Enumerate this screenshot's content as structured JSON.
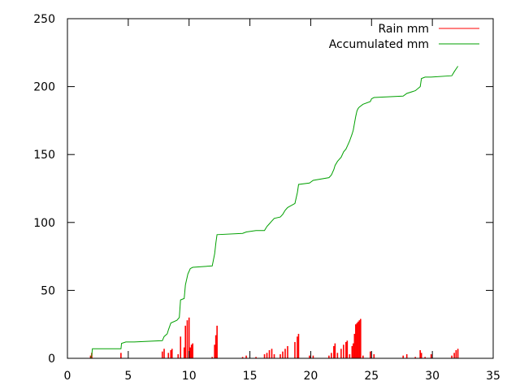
{
  "chart_data": {
    "type": "line",
    "title": "",
    "xlabel": "",
    "ylabel": "",
    "xlim": [
      0,
      35
    ],
    "ylim": [
      0,
      250
    ],
    "xticks": [
      0,
      5,
      10,
      15,
      20,
      25,
      30,
      35
    ],
    "yticks": [
      0,
      50,
      100,
      150,
      200,
      250
    ],
    "grid": false,
    "legend_position": "top-right",
    "series": [
      {
        "name": "Rain mm",
        "color": "#ff0000",
        "style": "impulses",
        "points": [
          [
            1.9,
            2
          ],
          [
            2.0,
            4
          ],
          [
            4.4,
            4
          ],
          [
            7.8,
            5
          ],
          [
            7.95,
            7
          ],
          [
            8.3,
            4
          ],
          [
            8.5,
            6
          ],
          [
            8.6,
            7
          ],
          [
            9.1,
            3
          ],
          [
            9.3,
            16
          ],
          [
            9.6,
            8
          ],
          [
            9.7,
            24
          ],
          [
            9.85,
            28
          ],
          [
            10.0,
            30
          ],
          [
            10.1,
            8
          ],
          [
            10.2,
            10
          ],
          [
            10.3,
            11
          ],
          [
            11.9,
            1
          ],
          [
            12.1,
            10
          ],
          [
            12.2,
            17
          ],
          [
            12.3,
            24
          ],
          [
            14.4,
            1
          ],
          [
            14.7,
            2
          ],
          [
            15.5,
            1
          ],
          [
            16.2,
            3
          ],
          [
            16.4,
            4
          ],
          [
            16.6,
            6
          ],
          [
            16.8,
            7
          ],
          [
            17.0,
            3
          ],
          [
            17.5,
            3
          ],
          [
            17.7,
            5
          ],
          [
            17.9,
            7
          ],
          [
            18.1,
            9
          ],
          [
            18.7,
            12
          ],
          [
            18.9,
            16
          ],
          [
            19.0,
            18
          ],
          [
            19.9,
            2
          ],
          [
            20.2,
            2
          ],
          [
            21.5,
            2
          ],
          [
            21.7,
            4
          ],
          [
            21.9,
            9
          ],
          [
            22.0,
            11
          ],
          [
            22.2,
            4
          ],
          [
            22.5,
            7
          ],
          [
            22.7,
            10
          ],
          [
            22.9,
            12
          ],
          [
            23.0,
            13
          ],
          [
            23.2,
            3
          ],
          [
            23.4,
            9
          ],
          [
            23.5,
            11
          ],
          [
            23.6,
            18
          ],
          [
            23.7,
            25
          ],
          [
            23.8,
            26
          ],
          [
            23.9,
            27
          ],
          [
            24.0,
            28
          ],
          [
            24.1,
            29
          ],
          [
            24.3,
            2
          ],
          [
            24.9,
            5
          ],
          [
            25.2,
            3
          ],
          [
            27.6,
            2
          ],
          [
            27.9,
            3
          ],
          [
            28.6,
            1
          ],
          [
            29.0,
            6
          ],
          [
            29.1,
            4
          ],
          [
            29.4,
            1
          ],
          [
            29.9,
            3
          ],
          [
            31.6,
            2
          ],
          [
            31.8,
            4
          ],
          [
            31.95,
            6
          ],
          [
            32.1,
            7
          ]
        ]
      },
      {
        "name": "Accumulated mm",
        "color": "#00a000",
        "style": "line",
        "points": [
          [
            1.9,
            0
          ],
          [
            2.0,
            2
          ],
          [
            2.05,
            7
          ],
          [
            4.4,
            7
          ],
          [
            4.45,
            11
          ],
          [
            4.8,
            12
          ],
          [
            5.5,
            12
          ],
          [
            7.8,
            13
          ],
          [
            7.95,
            16
          ],
          [
            8.2,
            18
          ],
          [
            8.3,
            21
          ],
          [
            8.5,
            26
          ],
          [
            9.0,
            28
          ],
          [
            9.2,
            30
          ],
          [
            9.3,
            43
          ],
          [
            9.6,
            44
          ],
          [
            9.7,
            54
          ],
          [
            9.8,
            58
          ],
          [
            9.9,
            62
          ],
          [
            10.0,
            64
          ],
          [
            10.1,
            66
          ],
          [
            10.3,
            67
          ],
          [
            11.9,
            68
          ],
          [
            12.1,
            77
          ],
          [
            12.2,
            85
          ],
          [
            12.3,
            91
          ],
          [
            14.4,
            92
          ],
          [
            14.7,
            93
          ],
          [
            15.5,
            94
          ],
          [
            16.2,
            94
          ],
          [
            16.4,
            97
          ],
          [
            16.6,
            99
          ],
          [
            16.8,
            101
          ],
          [
            17.0,
            103
          ],
          [
            17.5,
            104
          ],
          [
            17.7,
            106
          ],
          [
            17.9,
            109
          ],
          [
            18.1,
            111
          ],
          [
            18.7,
            114
          ],
          [
            18.9,
            122
          ],
          [
            19.0,
            128
          ],
          [
            19.9,
            129
          ],
          [
            20.2,
            131
          ],
          [
            21.5,
            133
          ],
          [
            21.7,
            135
          ],
          [
            21.9,
            139
          ],
          [
            22.0,
            142
          ],
          [
            22.2,
            145
          ],
          [
            22.5,
            148
          ],
          [
            22.7,
            152
          ],
          [
            22.9,
            154
          ],
          [
            23.0,
            156
          ],
          [
            23.2,
            160
          ],
          [
            23.4,
            165
          ],
          [
            23.5,
            168
          ],
          [
            23.6,
            173
          ],
          [
            23.7,
            178
          ],
          [
            23.8,
            182
          ],
          [
            23.9,
            184
          ],
          [
            24.0,
            185
          ],
          [
            24.3,
            187
          ],
          [
            24.9,
            189
          ],
          [
            25.0,
            191
          ],
          [
            25.2,
            192
          ],
          [
            27.6,
            193
          ],
          [
            27.9,
            195
          ],
          [
            28.6,
            197
          ],
          [
            29.0,
            200
          ],
          [
            29.1,
            206
          ],
          [
            29.4,
            207
          ],
          [
            29.9,
            207
          ],
          [
            31.6,
            208
          ],
          [
            31.8,
            211
          ],
          [
            31.95,
            213
          ],
          [
            32.1,
            215
          ]
        ]
      }
    ]
  }
}
